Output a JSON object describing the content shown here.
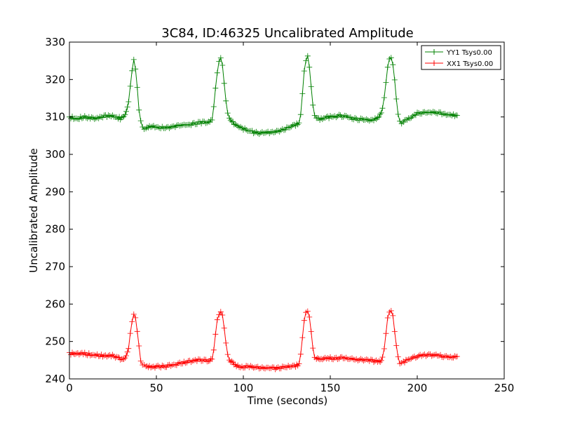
{
  "chart_data": {
    "type": "line",
    "title": "3C84, ID:46325 Uncalibrated Amplitude",
    "xlabel": "Time (seconds)",
    "ylabel": "Uncalibrated Amplitude",
    "xlim": [
      0,
      250
    ],
    "ylim": [
      240,
      330
    ],
    "xticks": [
      0,
      50,
      100,
      150,
      200,
      250
    ],
    "yticks": [
      240,
      250,
      260,
      270,
      280,
      290,
      300,
      310,
      320,
      330
    ],
    "grid": false,
    "legend_position": "top-right",
    "marker": "plus",
    "series": [
      {
        "name": "YY1 Tsys0.00",
        "color": "#008000",
        "x": [
          0,
          4,
          8,
          12,
          16,
          20,
          24,
          28,
          30,
          32,
          34,
          35,
          36,
          37,
          38,
          39,
          40,
          41,
          42,
          43,
          44,
          46,
          50,
          55,
          60,
          65,
          70,
          75,
          80,
          82,
          83,
          84,
          85,
          86,
          87,
          88,
          89,
          90,
          91,
          92,
          94,
          96,
          100,
          105,
          110,
          115,
          120,
          125,
          130,
          132,
          133,
          134,
          135,
          136,
          137,
          138,
          139,
          140,
          141,
          142,
          144,
          150,
          155,
          160,
          165,
          170,
          175,
          178,
          180,
          181,
          182,
          183,
          184,
          185,
          186,
          187,
          188,
          189,
          190,
          191,
          192,
          195,
          200,
          205,
          210,
          215,
          220,
          223
        ],
        "values": [
          310,
          309.5,
          310,
          309.8,
          309.5,
          310.2,
          310.4,
          309.8,
          309.5,
          310.5,
          314,
          318,
          322,
          325,
          323,
          318,
          312,
          309,
          307.5,
          307,
          307,
          307.5,
          307.2,
          307,
          307.5,
          307.8,
          308,
          308.5,
          308.5,
          309.5,
          313,
          318,
          322,
          325,
          326,
          324,
          319,
          314,
          311,
          309.5,
          308.5,
          307.5,
          306.8,
          306,
          305.7,
          305.8,
          306.2,
          307,
          307.8,
          308.5,
          311,
          316,
          322,
          325,
          326,
          323,
          318,
          313,
          310.5,
          309.8,
          309.5,
          310,
          310.3,
          310,
          309.4,
          309.2,
          309.2,
          310,
          312,
          315,
          319,
          323,
          325.5,
          325.8,
          324,
          320,
          315,
          311,
          309,
          308.5,
          308.8,
          309.5,
          311,
          311.2,
          311.2,
          310.8,
          310.5,
          310.4
        ]
      },
      {
        "name": "XX1 Tsys0.00",
        "color": "#ff0000",
        "x": [
          0,
          4,
          8,
          12,
          16,
          20,
          24,
          28,
          30,
          32,
          34,
          35,
          36,
          37,
          38,
          39,
          40,
          41,
          42,
          43,
          44,
          46,
          50,
          55,
          60,
          65,
          70,
          75,
          80,
          82,
          83,
          84,
          85,
          86,
          87,
          88,
          89,
          90,
          91,
          92,
          94,
          96,
          100,
          105,
          110,
          115,
          120,
          125,
          130,
          132,
          133,
          134,
          135,
          136,
          137,
          138,
          139,
          140,
          141,
          142,
          144,
          150,
          155,
          160,
          165,
          170,
          175,
          178,
          180,
          181,
          182,
          183,
          184,
          185,
          186,
          187,
          188,
          189,
          190,
          191,
          192,
          195,
          200,
          205,
          210,
          215,
          220,
          223
        ],
        "values": [
          246.8,
          246.6,
          246.8,
          246.5,
          246.3,
          246.2,
          246.2,
          245.8,
          245.2,
          245.5,
          248,
          252,
          255.5,
          257.5,
          256.5,
          253,
          249,
          245,
          243.8,
          243.5,
          243.3,
          243.2,
          243.3,
          243.3,
          243.8,
          244.2,
          244.8,
          245,
          245,
          245.5,
          248,
          252,
          256,
          257.5,
          258,
          257,
          253.5,
          249.5,
          246.5,
          245,
          244.2,
          243.6,
          243.2,
          243.2,
          243,
          243,
          242.8,
          243.2,
          243.5,
          244,
          246.5,
          251,
          255.5,
          257.5,
          258,
          256.5,
          252.5,
          248.5,
          246,
          245.5,
          245.3,
          245.5,
          245.6,
          245.4,
          245.2,
          245.1,
          244.8,
          244.5,
          245.5,
          248,
          252,
          256,
          258,
          258.3,
          257,
          253,
          249,
          246,
          244.2,
          244,
          244.5,
          245.2,
          246,
          246.4,
          246.3,
          246,
          245.9,
          246
        ]
      }
    ]
  }
}
